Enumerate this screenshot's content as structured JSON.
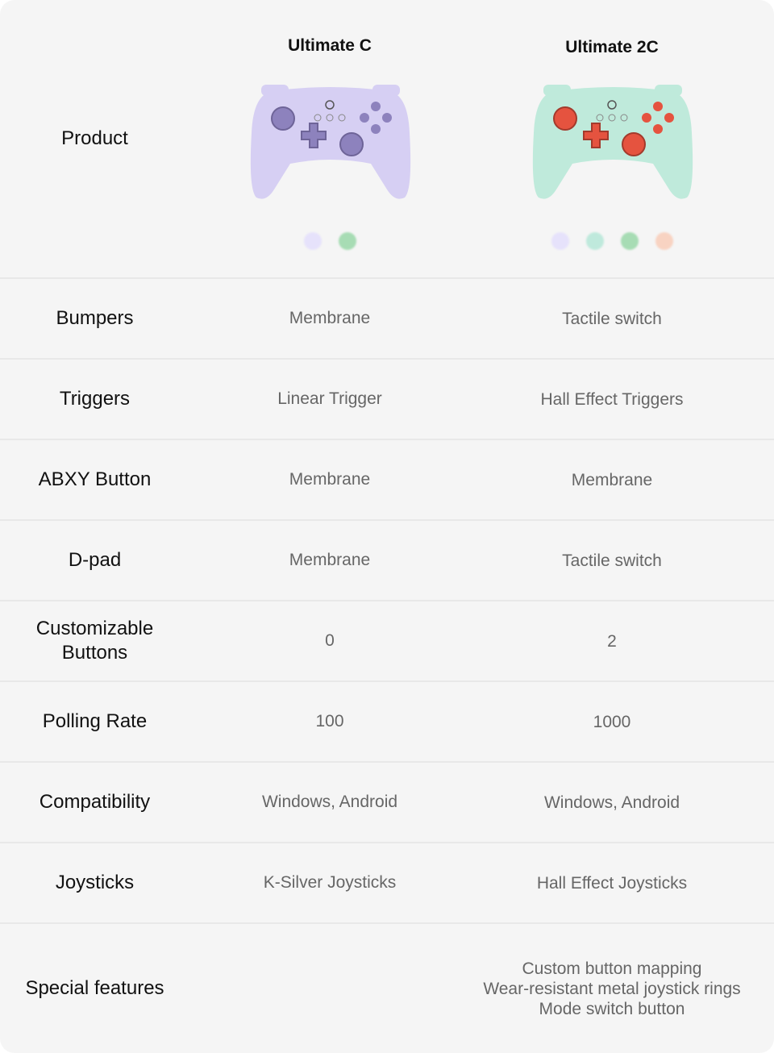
{
  "header": {
    "label": "Product",
    "products": [
      {
        "name": "Ultimate C",
        "colors": [
          "#e6e2fb",
          "#a7dcb4"
        ],
        "body_color": "#d6cff3",
        "button_color": "#8d82bd"
      },
      {
        "name": "Ultimate 2C",
        "colors": [
          "#e6e2fb",
          "#bfe9dc",
          "#a7dcb4",
          "#f8d3c2"
        ],
        "body_color": "#bfeadb",
        "button_color": "#e5533f"
      }
    ]
  },
  "rows": [
    {
      "label": "Bumpers",
      "v1": "Membrane",
      "v2": "Tactile switch"
    },
    {
      "label": "Triggers",
      "v1": "Linear Trigger",
      "v2": "Hall Effect Triggers"
    },
    {
      "label": "ABXY Button",
      "v1": "Membrane",
      "v2": "Membrane"
    },
    {
      "label": "D-pad",
      "v1": "Membrane",
      "v2": "Tactile switch"
    },
    {
      "label": "Customizable Buttons",
      "v1": "0",
      "v2": "2"
    },
    {
      "label": "Polling Rate",
      "v1": "100",
      "v2": "1000"
    },
    {
      "label": "Compatibility",
      "v1": "Windows, Android",
      "v2": "Windows, Android"
    },
    {
      "label": "Joysticks",
      "v1": "K-Silver Joysticks",
      "v2": "Hall Effect Joysticks"
    },
    {
      "label": "Special features",
      "v1": "",
      "v2": [
        "Custom button mapping",
        "Wear-resistant metal joystick rings",
        "Mode switch button"
      ]
    }
  ]
}
